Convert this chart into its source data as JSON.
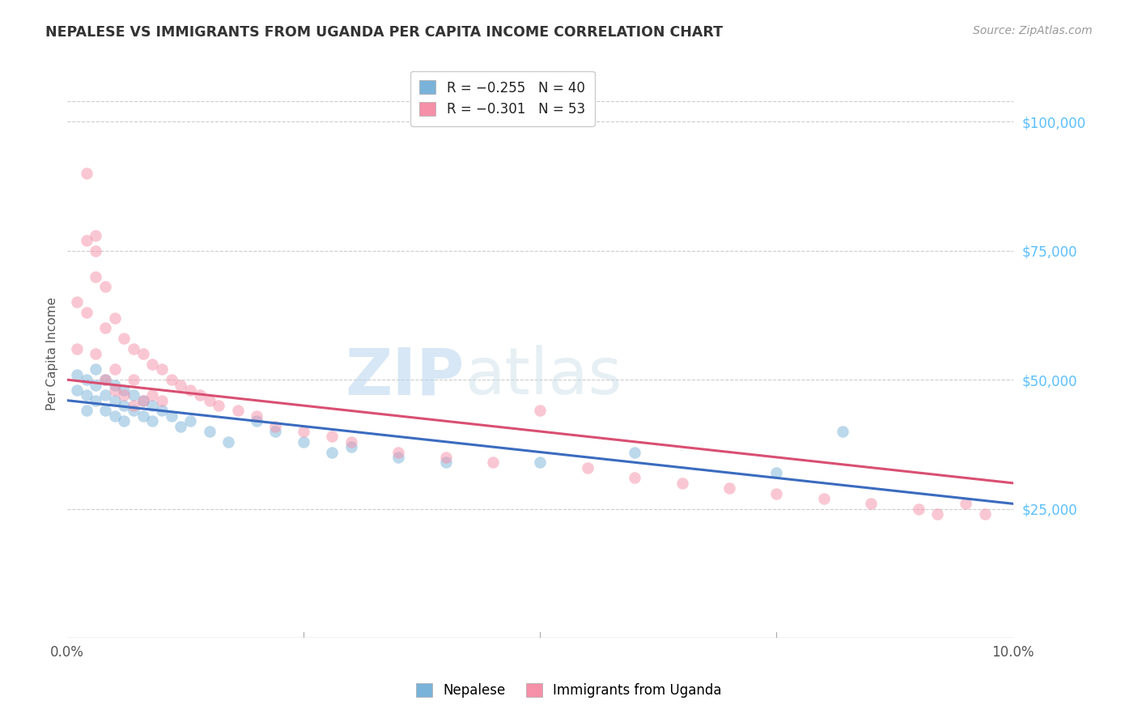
{
  "title": "NEPALESE VS IMMIGRANTS FROM UGANDA PER CAPITA INCOME CORRELATION CHART",
  "source": "Source: ZipAtlas.com",
  "ylabel": "Per Capita Income",
  "ytick_labels": [
    "$25,000",
    "$50,000",
    "$75,000",
    "$100,000"
  ],
  "ytick_values": [
    25000,
    50000,
    75000,
    100000
  ],
  "ymin": 0,
  "ymax": 110000,
  "xmin": 0.0,
  "xmax": 0.1,
  "legend_label_blue": "R = −0.255   N = 40",
  "legend_label_pink": "R = −0.301   N = 53",
  "legend_label1": "Nepalese",
  "legend_label2": "Immigrants from Uganda",
  "watermark_zip": "ZIP",
  "watermark_atlas": "atlas",
  "blue_scatter_x": [
    0.001,
    0.001,
    0.002,
    0.002,
    0.002,
    0.003,
    0.003,
    0.003,
    0.004,
    0.004,
    0.004,
    0.005,
    0.005,
    0.005,
    0.006,
    0.006,
    0.006,
    0.007,
    0.007,
    0.008,
    0.008,
    0.009,
    0.009,
    0.01,
    0.011,
    0.012,
    0.013,
    0.015,
    0.017,
    0.02,
    0.022,
    0.025,
    0.028,
    0.03,
    0.035,
    0.04,
    0.05,
    0.06,
    0.075,
    0.082
  ],
  "blue_scatter_y": [
    51000,
    48000,
    50000,
    47000,
    44000,
    52000,
    49000,
    46000,
    50000,
    47000,
    44000,
    49000,
    46000,
    43000,
    48000,
    45000,
    42000,
    47000,
    44000,
    46000,
    43000,
    45000,
    42000,
    44000,
    43000,
    41000,
    42000,
    40000,
    38000,
    42000,
    40000,
    38000,
    36000,
    37000,
    35000,
    34000,
    34000,
    36000,
    32000,
    40000
  ],
  "pink_scatter_x": [
    0.001,
    0.001,
    0.002,
    0.002,
    0.003,
    0.003,
    0.003,
    0.004,
    0.004,
    0.005,
    0.005,
    0.005,
    0.006,
    0.006,
    0.007,
    0.007,
    0.007,
    0.008,
    0.008,
    0.009,
    0.009,
    0.01,
    0.01,
    0.011,
    0.012,
    0.013,
    0.014,
    0.015,
    0.016,
    0.018,
    0.02,
    0.022,
    0.025,
    0.028,
    0.03,
    0.035,
    0.04,
    0.045,
    0.05,
    0.055,
    0.06,
    0.065,
    0.07,
    0.075,
    0.08,
    0.085,
    0.09,
    0.092,
    0.095,
    0.097,
    0.002,
    0.003,
    0.004
  ],
  "pink_scatter_y": [
    65000,
    56000,
    77000,
    63000,
    78000,
    70000,
    55000,
    60000,
    50000,
    62000,
    52000,
    48000,
    58000,
    47000,
    56000,
    50000,
    45000,
    55000,
    46000,
    53000,
    47000,
    52000,
    46000,
    50000,
    49000,
    48000,
    47000,
    46000,
    45000,
    44000,
    43000,
    41000,
    40000,
    39000,
    38000,
    36000,
    35000,
    34000,
    44000,
    33000,
    31000,
    30000,
    29000,
    28000,
    27000,
    26000,
    25000,
    24000,
    26000,
    24000,
    90000,
    75000,
    68000
  ],
  "blue_line_x": [
    0.0,
    0.1
  ],
  "blue_line_y": [
    46000,
    26000
  ],
  "pink_line_x": [
    0.0,
    0.1
  ],
  "pink_line_y": [
    50000,
    30000
  ],
  "background_color": "#ffffff",
  "grid_color": "#cccccc",
  "title_color": "#333333",
  "blue_dot_color": "#7ab3d9",
  "pink_dot_color": "#f590a8",
  "blue_line_color": "#3a6bbf",
  "pink_line_color": "#d94f72",
  "right_axis_color": "#5bbfff",
  "dot_size": 110,
  "dot_alpha": 0.5,
  "line_width": 2.2
}
